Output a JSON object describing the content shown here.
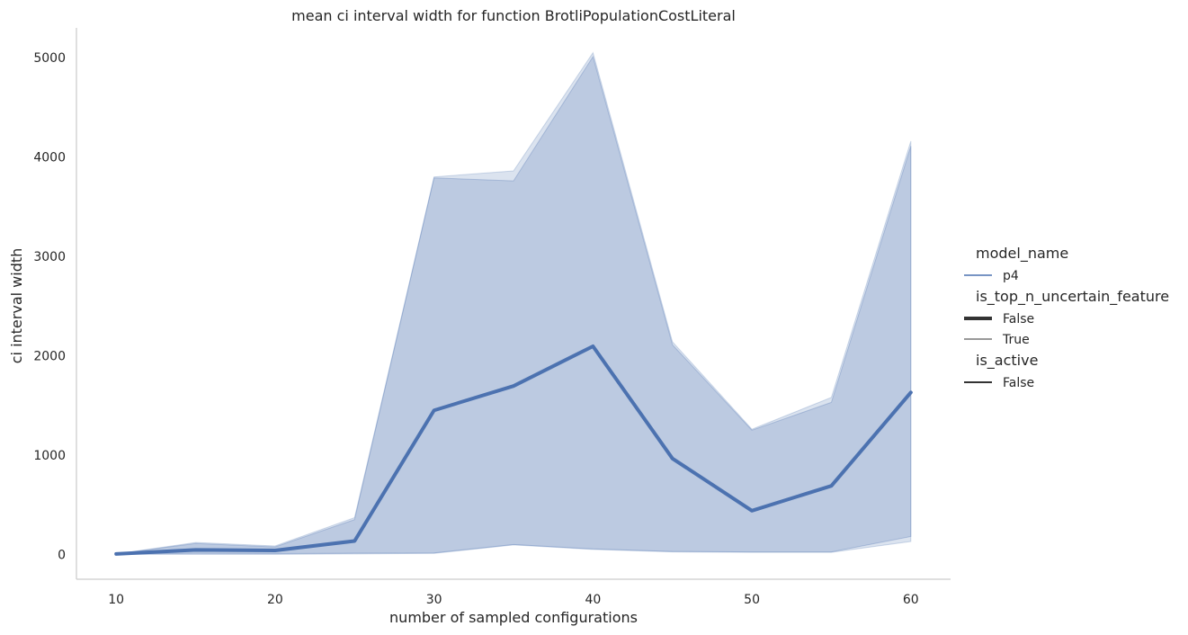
{
  "chart_data": {
    "type": "line",
    "title": "mean ci interval width for function BrotliPopulationCostLiteral",
    "xlabel": "number of sampled configurations",
    "ylabel": "ci interval width",
    "x_ticks": [
      10,
      20,
      30,
      40,
      50,
      60
    ],
    "y_ticks": [
      0,
      1000,
      2000,
      3000,
      4000,
      5000
    ],
    "xlim": [
      7.5,
      62.5
    ],
    "ylim": [
      -250,
      5300
    ],
    "grid": false,
    "legend_position": "right",
    "colors": {
      "line": "#4c72b0",
      "band": "#4c72b0",
      "axis": "#cccccc",
      "text": "#262626"
    },
    "series": [
      {
        "x": [
          10,
          15,
          20,
          25,
          30,
          35,
          40,
          45,
          50,
          55,
          60
        ],
        "mean": [
          5,
          45,
          40,
          135,
          1450,
          1695,
          2095,
          965,
          440,
          690,
          1630
        ],
        "band_upper": [
          5,
          120,
          85,
          370,
          3800,
          3860,
          5050,
          2140,
          1260,
          1580,
          4160
        ],
        "band_lower": [
          0,
          0,
          0,
          5,
          10,
          95,
          50,
          25,
          20,
          20,
          130
        ],
        "band_upper_inner": [
          5,
          110,
          75,
          350,
          3790,
          3760,
          5010,
          2110,
          1250,
          1530,
          4110
        ],
        "band_lower_inner": [
          5,
          10,
          8,
          12,
          15,
          100,
          55,
          30,
          25,
          25,
          180
        ]
      }
    ],
    "legend": {
      "groups": [
        {
          "title": "model_name",
          "items": [
            {
              "label": "p4",
              "style": "thin-blue"
            }
          ]
        },
        {
          "title": "is_top_n_uncertain_feature",
          "items": [
            {
              "label": "False",
              "style": "thick-dark"
            },
            {
              "label": "True",
              "style": "thin-dark"
            }
          ]
        },
        {
          "title": "is_active",
          "items": [
            {
              "label": "False",
              "style": "medium-dark"
            }
          ]
        }
      ]
    }
  }
}
